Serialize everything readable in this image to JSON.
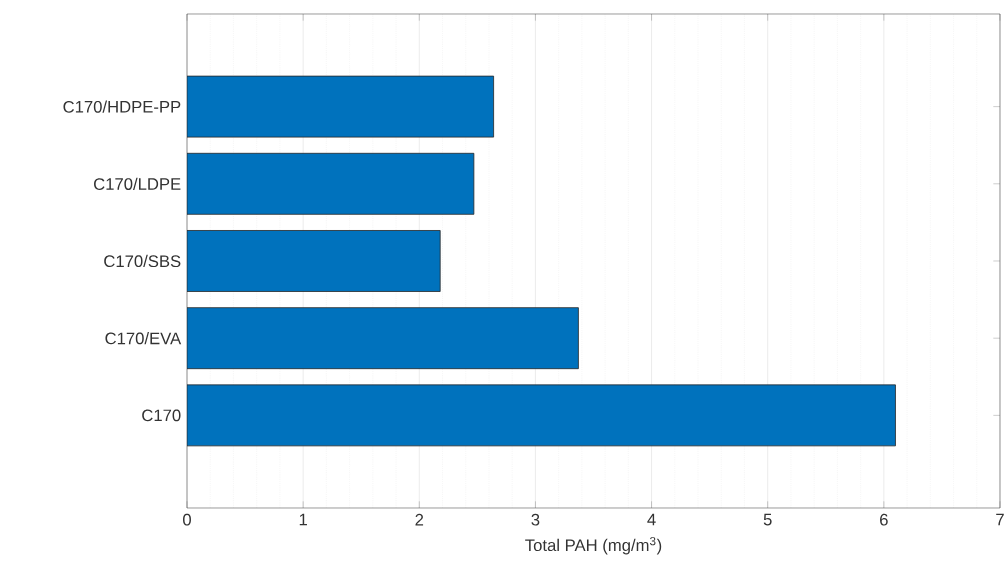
{
  "chart_data": {
    "type": "bar",
    "orientation": "horizontal",
    "xlabel": "Total PAH (mg/m$^{3}$)",
    "categories": [
      "C170/HDPE-PP",
      "C170/LDPE",
      "C170/SBS",
      "C170/EVA",
      "C170"
    ],
    "values": [
      2.64,
      2.47,
      2.18,
      3.37,
      6.1
    ],
    "color": "#0072bd",
    "xlim": [
      0,
      7
    ],
    "xticks": [
      0,
      1,
      2,
      3,
      4,
      5,
      6,
      7
    ],
    "grid": "x"
  }
}
